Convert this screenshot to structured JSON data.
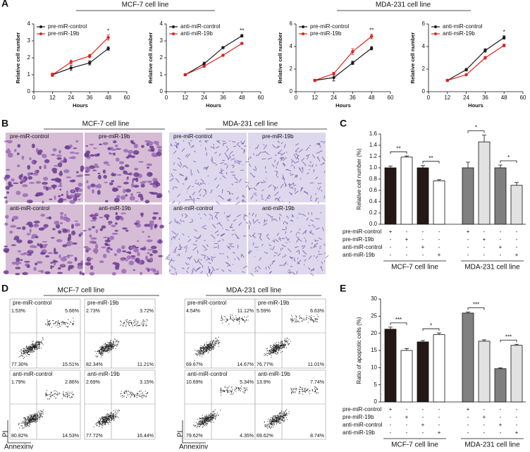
{
  "panel_labels": [
    "A",
    "B",
    "C",
    "D",
    "E"
  ],
  "panel_a": {
    "groups": [
      "MCF-7 cell line",
      "MDA-231 cell line"
    ]
  },
  "chart_data": [
    {
      "type": "line",
      "x": [
        12,
        24,
        36,
        48
      ],
      "xlim": [
        0,
        60
      ],
      "xticks": [
        0,
        12,
        24,
        36,
        48,
        60
      ],
      "ylim": [
        0,
        4
      ],
      "yticks": [
        0,
        1,
        2,
        3,
        4
      ],
      "x_label": "Hours",
      "y_label": "Relative cell number",
      "series": [
        {
          "name": "pre-miR-control",
          "color": "#1a1a1a",
          "values": [
            1.0,
            1.4,
            1.7,
            2.55
          ],
          "errors": [
            0.08,
            0.15,
            0.12,
            0.1
          ]
        },
        {
          "name": "pre-miR-19b",
          "color": "#e02020",
          "values": [
            1.0,
            1.75,
            2.1,
            3.2
          ],
          "errors": [
            0.1,
            0.12,
            0.1,
            0.15
          ]
        }
      ],
      "annotations": [
        {
          "text": "*",
          "x": 48
        }
      ]
    },
    {
      "type": "line",
      "x": [
        12,
        24,
        36,
        48
      ],
      "xlim": [
        0,
        60
      ],
      "xticks": [
        0,
        12,
        24,
        36,
        48,
        60
      ],
      "ylim": [
        0,
        4
      ],
      "yticks": [
        0,
        1,
        2,
        3,
        4
      ],
      "x_label": "Hours",
      "y_label": "Relative cell number",
      "series": [
        {
          "name": "anti-miR-control",
          "color": "#1a1a1a",
          "values": [
            1.0,
            1.65,
            2.6,
            3.3
          ],
          "errors": [
            0.06,
            0.1,
            0.06,
            0.08
          ]
        },
        {
          "name": "anti-miR-19b",
          "color": "#e02020",
          "values": [
            1.0,
            1.5,
            2.15,
            2.85
          ],
          "errors": [
            0.06,
            0.06,
            0.06,
            0.06
          ]
        }
      ],
      "annotations": [
        {
          "text": "**",
          "x": 48
        }
      ]
    },
    {
      "type": "line",
      "x": [
        12,
        24,
        36,
        48
      ],
      "xlim": [
        0,
        60
      ],
      "xticks": [
        0,
        12,
        24,
        36,
        48,
        60
      ],
      "ylim": [
        0,
        6
      ],
      "yticks": [
        0,
        2,
        4,
        6
      ],
      "x_label": "Hours",
      "y_label": "Relative cell number",
      "series": [
        {
          "name": "pre-miR-control",
          "color": "#1a1a1a",
          "values": [
            1.0,
            1.25,
            2.55,
            3.85
          ],
          "errors": [
            0.1,
            0.3,
            0.15,
            0.15
          ]
        },
        {
          "name": "pre-miR-19b",
          "color": "#e02020",
          "values": [
            1.0,
            1.6,
            3.55,
            4.9
          ],
          "errors": [
            0.1,
            0.12,
            0.25,
            0.2
          ]
        }
      ],
      "annotations": [
        {
          "text": "**",
          "x": 48
        }
      ]
    },
    {
      "type": "line",
      "x": [
        12,
        24,
        36,
        48
      ],
      "xlim": [
        0,
        60
      ],
      "xticks": [
        0,
        12,
        24,
        36,
        48,
        60
      ],
      "ylim": [
        0,
        6
      ],
      "yticks": [
        0,
        2,
        4,
        6
      ],
      "x_label": "Hours",
      "y_label": "Relative cell number",
      "series": [
        {
          "name": "anti-miR-control",
          "color": "#1a1a1a",
          "values": [
            1.0,
            1.95,
            3.65,
            4.8
          ],
          "errors": [
            0.08,
            0.12,
            0.15,
            0.15
          ]
        },
        {
          "name": "anti-miR-19b",
          "color": "#e02020",
          "values": [
            1.0,
            1.5,
            3.0,
            4.1
          ],
          "errors": [
            0.08,
            0.08,
            0.12,
            0.12
          ]
        }
      ],
      "annotations": [
        {
          "text": "*",
          "x": 48
        }
      ]
    },
    {
      "type": "bar",
      "ylim": [
        0,
        1.6
      ],
      "yticks": [
        {
          "value": 0,
          "label": "0.0"
        },
        0.2,
        0.4,
        0.6,
        0.8,
        {
          "value": 1,
          "label": "1.0"
        },
        1.2,
        1.4,
        1.6
      ],
      "y_label": "Relative cell number (%)",
      "values": [
        1.0,
        1.19,
        1.0,
        0.77,
        1.0,
        1.46,
        1.0,
        0.69
      ],
      "errors": [
        0.03,
        0.02,
        0.04,
        0.02,
        0.1,
        0.12,
        0.05,
        0.05
      ],
      "colors": [
        "#231815",
        "#ffffff",
        "#231815",
        "#ffffff",
        "#808080",
        "#e2e2e2",
        "#808080",
        "#e2e2e2"
      ],
      "significance": [
        "**",
        "**",
        "*",
        "*"
      ],
      "conditions": [
        {
          "name": "pre-miR-control",
          "marks": [
            "+",
            "-",
            "-",
            "-",
            "+",
            "-",
            "-",
            "-"
          ]
        },
        {
          "name": "pre-miR-19b",
          "marks": [
            "-",
            "+",
            "-",
            "-",
            "-",
            "+",
            "-",
            "-"
          ]
        },
        {
          "name": "anti-miR-control",
          "marks": [
            "-",
            "-",
            "+",
            "-",
            "-",
            "-",
            "+",
            "-"
          ]
        },
        {
          "name": "anti-miR-19b",
          "marks": [
            "-",
            "-",
            "-",
            "+",
            "-",
            "-",
            "-",
            "+"
          ]
        }
      ],
      "groups": [
        "MCF-7 cell line",
        "MDA-231 cell line"
      ]
    },
    {
      "type": "bar",
      "ylim": [
        0,
        30
      ],
      "yticks": [
        0,
        5,
        10,
        15,
        20,
        25,
        30
      ],
      "y_label": "Ratio of apoptotic cells (%)",
      "values": [
        21.2,
        15.0,
        17.5,
        19.6,
        25.9,
        17.7,
        9.7,
        16.5
      ],
      "errors": [
        0.6,
        0.5,
        0.4,
        0.5,
        0.3,
        0.4,
        0.2,
        0.3
      ],
      "colors": [
        "#231815",
        "#ffffff",
        "#231815",
        "#ffffff",
        "#808080",
        "#e2e2e2",
        "#808080",
        "#e2e2e2"
      ],
      "significance": [
        "***",
        "*",
        "***",
        "***"
      ],
      "conditions": [
        {
          "name": "pre-miR-control",
          "marks": [
            "+",
            "-",
            "-",
            "-",
            "+",
            "-",
            "-",
            "-"
          ]
        },
        {
          "name": "pre-miR-19b",
          "marks": [
            "-",
            "+",
            "-",
            "-",
            "-",
            "+",
            "-",
            "-"
          ]
        },
        {
          "name": "anti-miR-control",
          "marks": [
            "-",
            "-",
            "+",
            "-",
            "-",
            "-",
            "+",
            "-"
          ]
        },
        {
          "name": "anti-miR-19b",
          "marks": [
            "-",
            "-",
            "-",
            "+",
            "-",
            "-",
            "-",
            "+"
          ]
        }
      ],
      "groups": [
        "MCF-7 cell line",
        "MDA-231 cell line"
      ]
    }
  ],
  "panel_b": {
    "groups": [
      {
        "title": "MCF-7 cell line",
        "images": [
          "pre-miR-control",
          "pre-miR-19b",
          "anti-miR-control",
          "anti-miR-19b"
        ]
      },
      {
        "title": "MDA-231 cell line",
        "images": [
          "pre-miR-control",
          "pre-miR-19b",
          "anti-miR-control",
          "anti-miR-19b"
        ]
      }
    ]
  },
  "panel_d": {
    "x_label": "Annexinv",
    "y_label": "PI",
    "groups": [
      {
        "title": "MCF-7 cell line",
        "plots": [
          {
            "name": "pre-miR-control",
            "quadrants": [
              "1.53%",
              "5.66%",
              "77.30%",
              "15.51%"
            ]
          },
          {
            "name": "pre-miR-19b",
            "quadrants": [
              "2.73%",
              "3.72%",
              "82.34%",
              "11.21%"
            ]
          },
          {
            "name": "anti-miR-control",
            "quadrants": [
              "1.79%",
              "2.86%",
              "80.82%",
              "14.53%"
            ]
          },
          {
            "name": "anti-miR-19b",
            "quadrants": [
              "2.69%",
              "3.15%",
              "77.72%",
              "16.44%"
            ]
          }
        ]
      },
      {
        "title": "MDA-231 cell line",
        "plots": [
          {
            "name": "pre-miR-control",
            "quadrants": [
              "4.54%",
              "11.12%",
              "69.67%",
              "14.67%"
            ]
          },
          {
            "name": "pre-miR-19b",
            "quadrants": [
              "5.59%",
              "6.63%",
              "76.77%",
              "11.01%"
            ]
          },
          {
            "name": "anti-miR-control",
            "quadrants": [
              "10.69%",
              "5.34%",
              "79.62%",
              "4.35%"
            ]
          },
          {
            "name": "anti-miR-19b",
            "quadrants": [
              "13.9%",
              "7.74%",
              "69.62%",
              "8.74%"
            ]
          }
        ]
      }
    ]
  }
}
